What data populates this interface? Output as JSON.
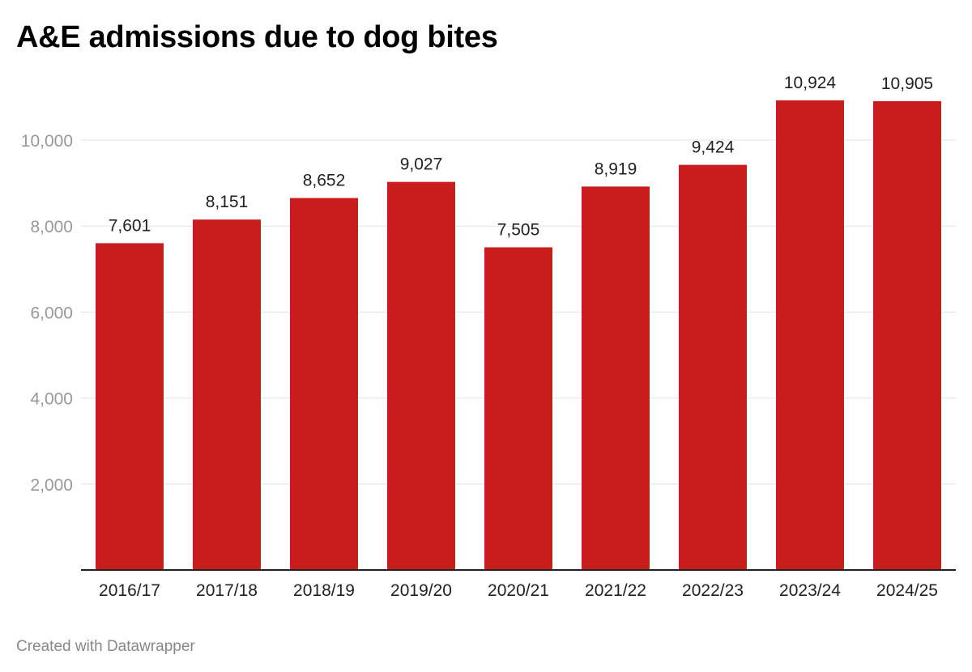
{
  "chart_data": {
    "type": "bar",
    "title": "A&E admissions due to dog bites",
    "xlabel": "",
    "ylabel": "",
    "categories": [
      "2016/17",
      "2017/18",
      "2018/19",
      "2019/20",
      "2020/21",
      "2021/22",
      "2022/23",
      "2023/24",
      "2024/25"
    ],
    "values": [
      7601,
      8151,
      8652,
      9027,
      7505,
      8919,
      9424,
      10924,
      10905
    ],
    "value_labels": [
      "7,601",
      "8,151",
      "8,652",
      "9,027",
      "7,505",
      "8,919",
      "9,424",
      "10,924",
      "10,905"
    ],
    "ylim": [
      0,
      12000
    ],
    "yticks": [
      2000,
      4000,
      6000,
      8000,
      10000
    ],
    "ytick_labels": [
      "2,000",
      "4,000",
      "6,000",
      "8,000",
      "10,000"
    ],
    "grid": true,
    "legend": "none",
    "bar_color": "#c91d1d"
  },
  "credit": "Created with Datawrapper"
}
